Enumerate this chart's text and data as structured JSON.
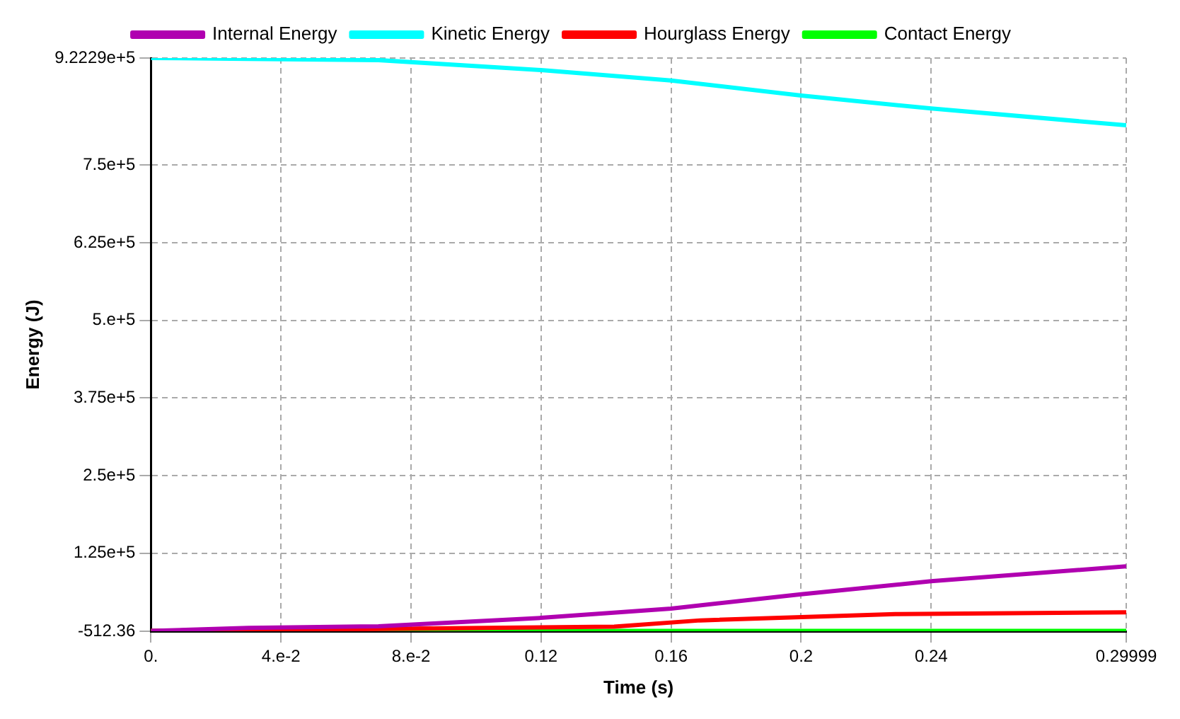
{
  "chart_data": {
    "type": "line",
    "xlabel": "Time (s)",
    "ylabel": "Energy (J)",
    "legend": "top",
    "grid": true,
    "marker": "none",
    "line_style": "solid",
    "xlim": [
      0,
      0.29999
    ],
    "ylim": [
      -512.36,
      922290
    ],
    "xticks": [
      {
        "value": 0,
        "label": "0."
      },
      {
        "value": 0.04,
        "label": "4.e-2"
      },
      {
        "value": 0.08,
        "label": "8.e-2"
      },
      0.12,
      0.16,
      0.2,
      0.24,
      0.29999
    ],
    "yticks": [
      -512.36,
      {
        "value": 125000,
        "label": "1.25e+5"
      },
      {
        "value": 250000,
        "label": "2.5e+5"
      },
      {
        "value": 375000,
        "label": "3.75e+5"
      },
      {
        "value": 500000,
        "label": "5.e+5"
      },
      {
        "value": 625000,
        "label": "6.25e+5"
      },
      {
        "value": 750000,
        "label": "7.5e+5"
      },
      {
        "value": 922290,
        "label": "9.2229e+5"
      }
    ],
    "series": [
      {
        "name": "Internal Energy",
        "color": "#b000b0",
        "x": [
          0,
          0.03,
          0.07,
          0.12,
          0.16,
          0.2,
          0.24,
          0.29999
        ],
        "values": [
          0,
          5000,
          7500,
          21000,
          36000,
          59000,
          80000,
          104000
        ]
      },
      {
        "name": "Kinetic Energy",
        "color": "#00ffff",
        "x": [
          0,
          0.03,
          0.07,
          0.12,
          0.16,
          0.2,
          0.24,
          0.29999
        ],
        "values": [
          922290,
          921000,
          919000,
          903000,
          886000,
          862000,
          841000,
          814000
        ]
      },
      {
        "name": "Hourglass Energy",
        "color": "#ff0000",
        "x": [
          0,
          0.03,
          0.1425,
          0.169,
          0.229,
          0.29999
        ],
        "values": [
          0,
          1000,
          7000,
          17000,
          27000,
          30000
        ]
      },
      {
        "name": "Contact Energy",
        "color": "#00ff00",
        "x": [
          0,
          0.29999
        ],
        "values": [
          0,
          0
        ]
      }
    ]
  }
}
